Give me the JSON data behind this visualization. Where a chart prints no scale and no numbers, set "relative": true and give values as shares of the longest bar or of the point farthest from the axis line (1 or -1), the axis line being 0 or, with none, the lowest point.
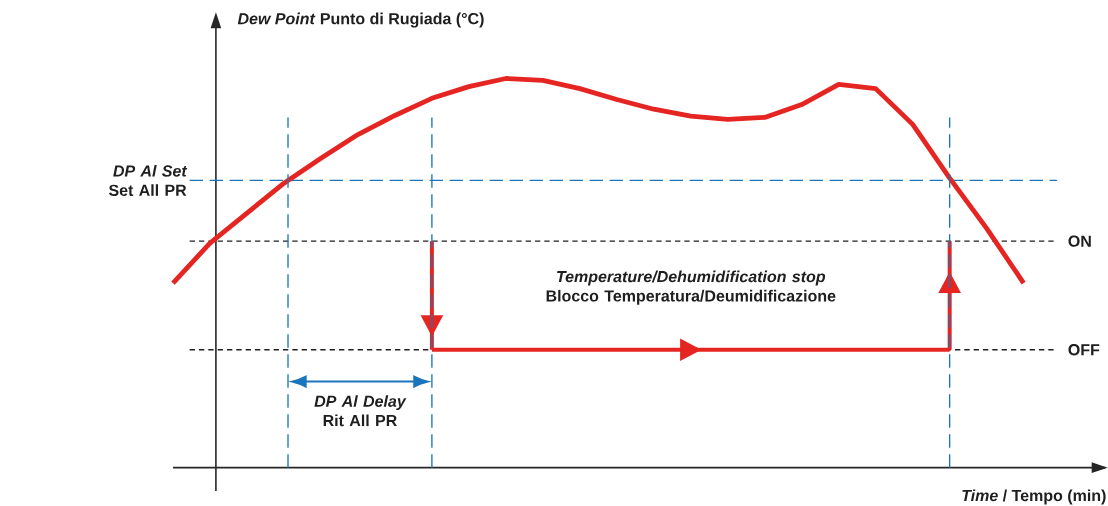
{
  "chart_data": {
    "type": "line",
    "relative": true,
    "xlabel": "*Time* / Tempo (min)",
    "ylabel": "*Dew Point* Punto di Rugiada (°C)",
    "categories": [
      null,
      null,
      null,
      null,
      null,
      null,
      null,
      null,
      null,
      null,
      null,
      null,
      null,
      null,
      null,
      null,
      null,
      null,
      null,
      null,
      null,
      null,
      null,
      null
    ],
    "series": [
      {
        "color": "#e52521",
        "values": [
          0.474,
          0.577,
          0.654,
          0.731,
          0.795,
          0.856,
          0.905,
          0.949,
          0.979,
          1,
          0.995,
          0.974,
          0.946,
          0.921,
          0.903,
          0.895,
          0.9,
          0.933,
          0.985,
          0.974,
          0.882,
          0.744,
          0.615,
          0.474
        ]
      },
      {
        "color": "#e52521",
        "values": [
          null,
          null,
          null,
          null,
          null,
          null,
          null,
          0.303,
          0.303,
          0.303,
          0.303,
          0.303,
          0.303,
          0.303,
          0.303,
          0.303,
          0.303,
          0.303,
          0.303,
          0.303,
          0.303,
          0.303,
          null,
          null
        ]
      }
    ],
    "ref_lines": [
      {
        "axis": "y",
        "value": 0.738,
        "label": "*DP Al Set* Set All PR",
        "color": "#1a75bc",
        "line_style": "dashed"
      },
      {
        "axis": "y",
        "value": 0.582,
        "label": "ON",
        "color": "#231f20",
        "line_style": "dotted"
      },
      {
        "axis": "y",
        "value": 0.303,
        "label": "OFF",
        "color": "#231f20",
        "line_style": "dotted"
      }
    ],
    "annotations": [
      "*DP Al Delay* Rit All PR",
      "*Temperature/Dehumidification stop* Blocco Temperatura/Deumidificazione"
    ]
  }
}
